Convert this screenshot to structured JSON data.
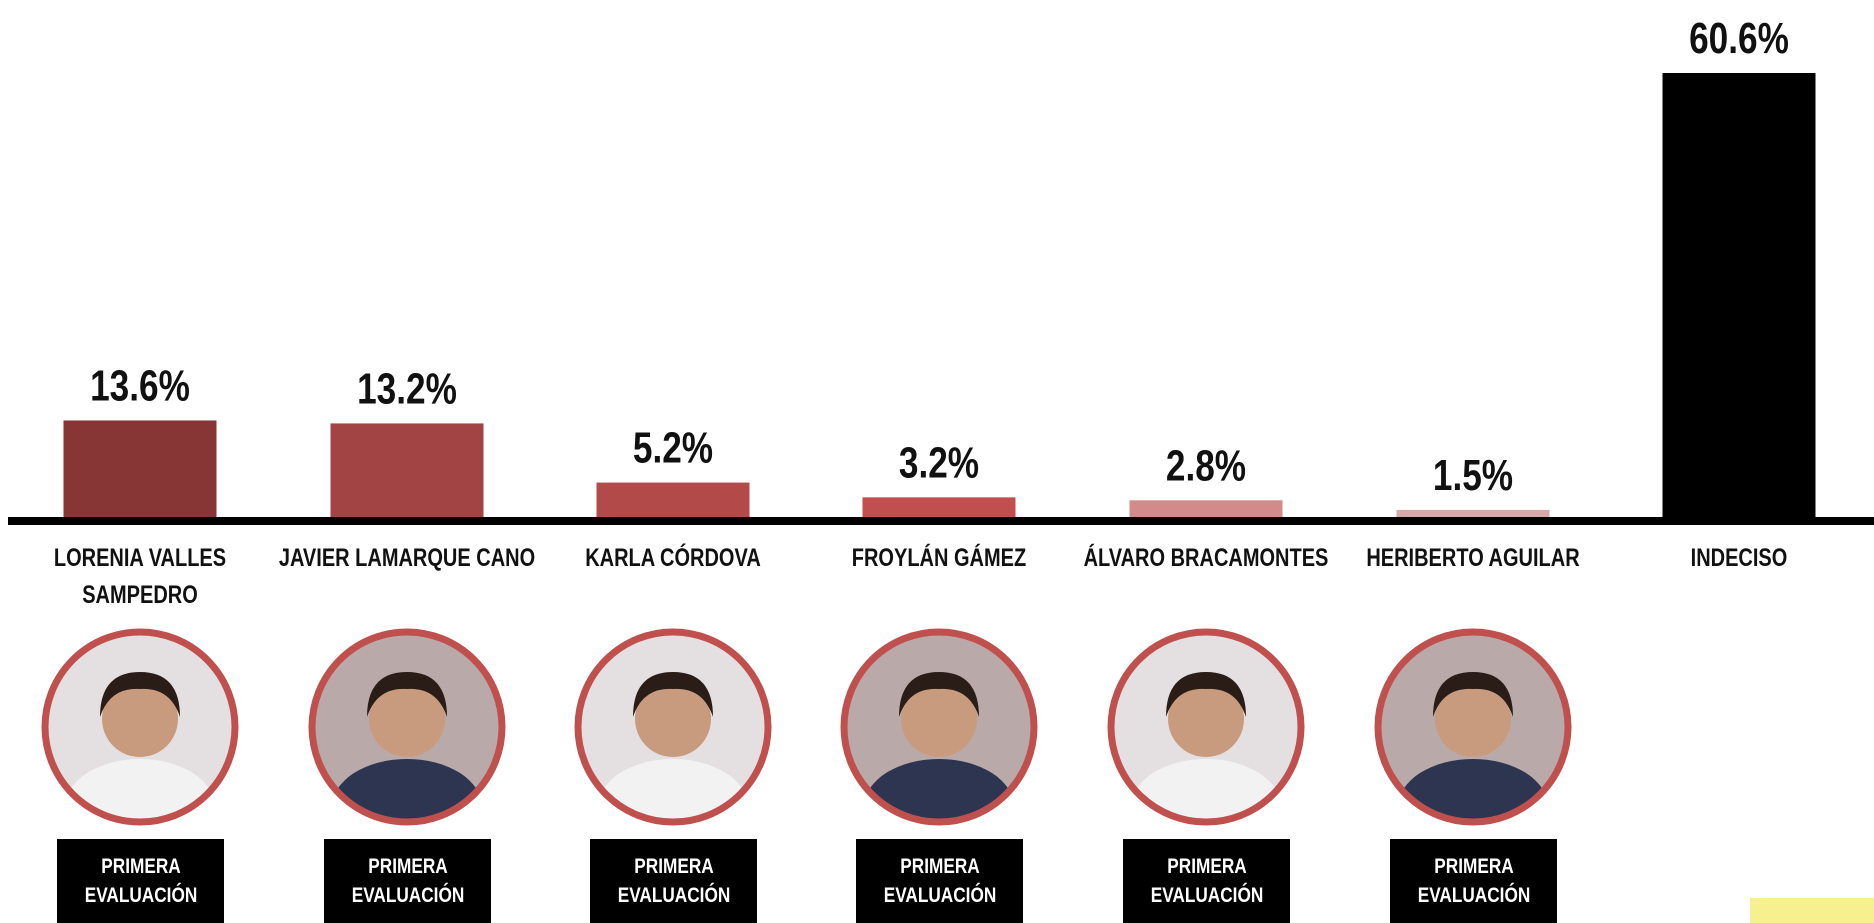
{
  "chart_data": {
    "type": "bar",
    "categories": [
      "LORENIA VALLES SAMPEDRO",
      "JAVIER LAMARQUE CANO",
      "KARLA CÓRDOVA",
      "FROYLÁN GÁMEZ",
      "ÁLVARO BRACAMONTES",
      "HERIBERTO AGUILAR",
      "INDECISO"
    ],
    "values": [
      13.6,
      13.2,
      5.2,
      3.2,
      2.8,
      1.5,
      60.6
    ],
    "value_labels": [
      "13.6%",
      "13.2%",
      "5.2%",
      "3.2%",
      "2.8%",
      "1.5%",
      "60.6%"
    ],
    "colors": [
      "#873535",
      "#a34444",
      "#b34a4a",
      "#c14f4f",
      "#d28a8a",
      "#d8a9a9",
      "#000000"
    ],
    "badges": [
      "PRIMERA EVALUACIÓN",
      "PRIMERA EVALUACIÓN",
      "PRIMERA EVALUACIÓN",
      "PRIMERA EVALUACIÓN",
      "PRIMERA EVALUACIÓN",
      "PRIMERA EVALUACIÓN"
    ]
  }
}
